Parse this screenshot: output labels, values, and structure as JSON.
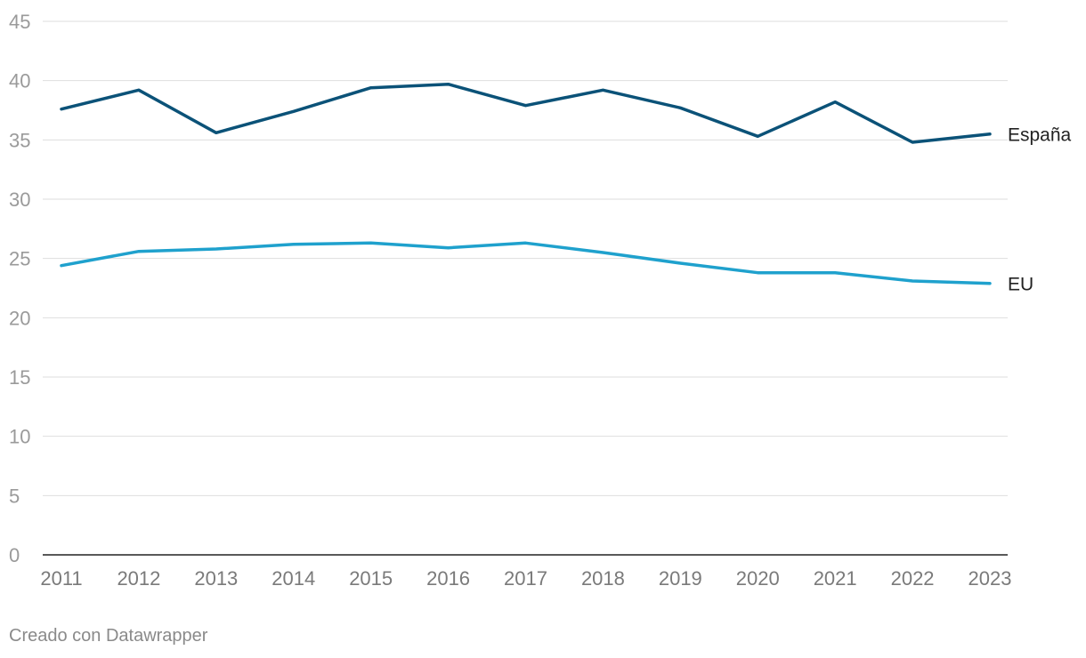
{
  "chart_data": {
    "type": "line",
    "title": "",
    "xlabel": "",
    "ylabel": "",
    "x": [
      "2011",
      "2012",
      "2013",
      "2014",
      "2015",
      "2016",
      "2017",
      "2018",
      "2019",
      "2020",
      "2021",
      "2022",
      "2023"
    ],
    "ylim": [
      0,
      45
    ],
    "yticks": [
      "0",
      "5",
      "10",
      "15",
      "20",
      "25",
      "30",
      "35",
      "40",
      "45"
    ],
    "grid": true,
    "legend": "direct labels at line ends (right)",
    "series": [
      {
        "name": "España",
        "color": "#0b5278",
        "values": [
          37.6,
          39.2,
          35.6,
          37.4,
          39.4,
          39.7,
          37.9,
          39.2,
          37.7,
          35.3,
          38.2,
          34.8,
          35.5
        ]
      },
      {
        "name": "EU",
        "color": "#1fa1cd",
        "values": [
          24.4,
          25.6,
          25.8,
          26.2,
          26.3,
          25.9,
          26.3,
          25.5,
          24.6,
          23.8,
          23.8,
          23.1,
          22.9
        ]
      }
    ]
  },
  "footer": {
    "credit": "Creado con Datawrapper"
  }
}
